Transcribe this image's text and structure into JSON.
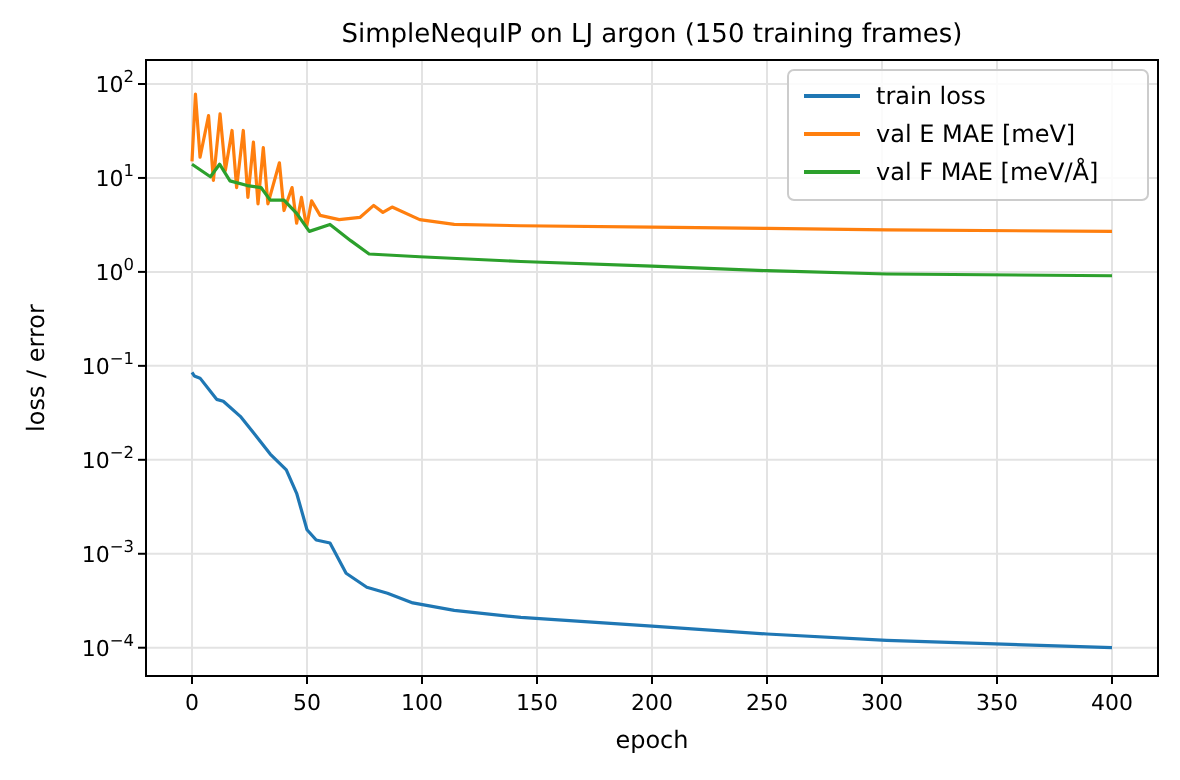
{
  "chart_data": {
    "type": "line",
    "title": "SimpleNequIP on LJ argon (150 training frames)",
    "xlabel": "epoch",
    "ylabel": "loss / error",
    "log": "y",
    "grid": true,
    "legend": "top right",
    "xlim": [
      -20,
      420
    ],
    "xticks": [
      0,
      50,
      100,
      150,
      200,
      250,
      300,
      350,
      400
    ],
    "ylim": [
      5e-05,
      180
    ],
    "yticks": [
      {
        "value": 0.0001,
        "label": "10$^{−4}$"
      },
      {
        "value": 0.001,
        "label": "10$^{−3}$"
      },
      {
        "value": 0.01,
        "label": "10$^{−2}$"
      },
      {
        "value": 0.1,
        "label": "10$^{−1}$"
      },
      {
        "value": 1,
        "label": "10$^{0}$"
      },
      {
        "value": 10,
        "label": "10$^{1}$"
      },
      {
        "value": 100,
        "label": "10$^{2}$"
      }
    ],
    "series": [
      {
        "name": "train loss",
        "color": "#1f77b4",
        "x": [
          0,
          1,
          3.5,
          10.7,
          13.6,
          21,
          27,
          34,
          41,
          45.5,
          50,
          54,
          60,
          67,
          76,
          85,
          96,
          114,
          143,
          200,
          250,
          302,
          400
        ],
        "values": [
          0.085,
          0.078,
          0.074,
          0.044,
          0.042,
          0.029,
          0.019,
          0.0115,
          0.0078,
          0.0044,
          0.0018,
          0.0014,
          0.0013,
          0.00062,
          0.00044,
          0.00038,
          0.0003,
          0.00025,
          0.00021,
          0.00017,
          0.00014,
          0.00012,
          0.0001
        ]
      },
      {
        "name": "val E MAE [meV]",
        "color": "#ff7f0e",
        "x": [
          0,
          1.5,
          3.5,
          7.2,
          9.3,
          12.2,
          14.5,
          17.4,
          19.4,
          22.3,
          24.3,
          26.7,
          28.7,
          31,
          33,
          38,
          40,
          43.5,
          45.5,
          47.6,
          49.8,
          52,
          55.7,
          64,
          73,
          79,
          83,
          87,
          99,
          114,
          143,
          200,
          250,
          302,
          400
        ],
        "values": [
          15,
          78,
          16.6,
          46,
          9.4,
          48,
          12,
          32,
          7.9,
          32,
          6.2,
          24,
          5.3,
          21,
          5.3,
          14.5,
          4.5,
          7.9,
          3.3,
          6.2,
          3,
          5.7,
          4,
          3.6,
          3.8,
          5.1,
          4.3,
          4.9,
          3.6,
          3.2,
          3.1,
          3,
          2.9,
          2.8,
          2.7
        ]
      },
      {
        "name": "val F MAE [meV/Å]",
        "color": "#2ca02c",
        "x": [
          0,
          8,
          12,
          16.5,
          24,
          30,
          34,
          40,
          45.5,
          51,
          60,
          69,
          77,
          99,
          143,
          200,
          250,
          302,
          400
        ],
        "values": [
          14,
          10.3,
          14,
          9.3,
          8.3,
          7.9,
          5.8,
          5.8,
          4.2,
          2.7,
          3.2,
          2.15,
          1.55,
          1.45,
          1.29,
          1.15,
          1.03,
          0.95,
          0.91
        ]
      }
    ]
  }
}
